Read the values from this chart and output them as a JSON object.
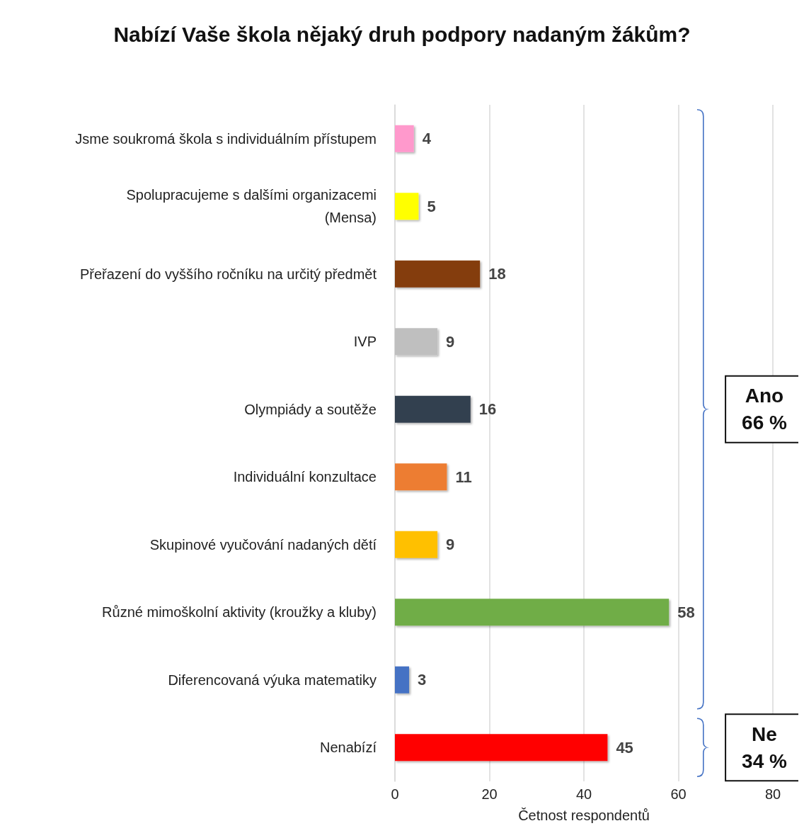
{
  "chart_data": {
    "type": "bar",
    "orientation": "horizontal",
    "title": "Nabízí Vaše škola nějaký druh podpory nadaným žákům?",
    "categories": [
      "Jsme soukromá škola s individuálním přístupem",
      "Spolupracujeme s dalšími organizacemi\n(Mensa)",
      "Přeřazení do vyššího ročníku na určitý předmět",
      "IVP",
      "Olympiády a soutěže",
      "Individuální konzultace",
      "Skupinové vyučování nadaných dětí",
      "Různé mimoškolní aktivity (kroužky a kluby)",
      "Diferencovaná výuka matematiky",
      "Nenabízí"
    ],
    "values": [
      4,
      5,
      18,
      9,
      16,
      11,
      9,
      58,
      3,
      45
    ],
    "colors": [
      "#ff99cc",
      "#ffff00",
      "#843c0c",
      "#bfbfbf",
      "#333f50",
      "#ed7d31",
      "#ffc000",
      "#70ad47",
      "#4472c4",
      "#ff0000"
    ],
    "xlim": [
      0,
      80
    ],
    "xticks": [
      0,
      20,
      40,
      60,
      80
    ],
    "xlabel": "Četnost respondentů",
    "grid": "x",
    "data_labels": true,
    "annotations": [
      "Ano\n66 %",
      "Ne\n34 %"
    ]
  }
}
